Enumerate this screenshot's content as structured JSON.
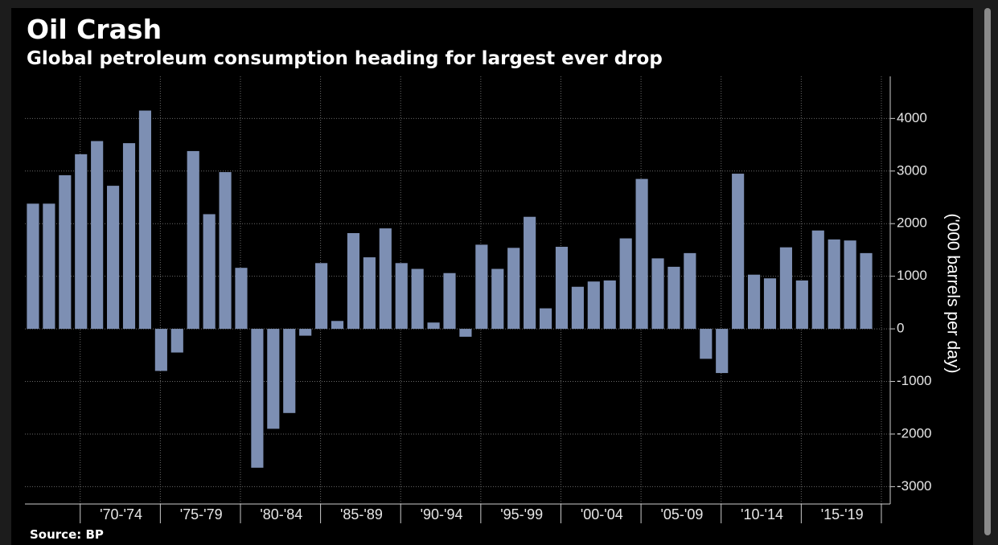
{
  "chart_data": {
    "type": "bar",
    "title": "Oil Crash",
    "subtitle": "Global petroleum consumption heading for largest ever drop",
    "source": "Source: BP",
    "y_label": "('000 barrels per day)",
    "categories": [
      null,
      null,
      null,
      null,
      null,
      null,
      null,
      null,
      null,
      null,
      null,
      null,
      null,
      null,
      null,
      null,
      null,
      null,
      null,
      null,
      null,
      null,
      null,
      null,
      null,
      null,
      null,
      null,
      null,
      null,
      null,
      null,
      null,
      null,
      null,
      null,
      null,
      null,
      null,
      null,
      null,
      null,
      null,
      null,
      null,
      null,
      null,
      null,
      null,
      null,
      null,
      null,
      null
    ],
    "values": [
      2380,
      2380,
      2920,
      3320,
      3570,
      2720,
      3530,
      4150,
      -800,
      -450,
      3380,
      2180,
      2980,
      1160,
      -2640,
      -1900,
      -1600,
      -130,
      1250,
      150,
      1820,
      1360,
      1910,
      1250,
      1140,
      120,
      1060,
      -150,
      1600,
      1140,
      1540,
      2130,
      390,
      1560,
      800,
      900,
      920,
      1720,
      2850,
      1340,
      1180,
      1440,
      -570,
      -840,
      2950,
      1030,
      960,
      1550,
      920,
      1870,
      1700,
      1680,
      1440
    ],
    "x_groups": [
      "'70-'74",
      "'75-'79",
      "'80-'84",
      "'85-'89",
      "'90-'94",
      "'95-'99",
      "'00-'04",
      "'05-'09",
      "'10-'14",
      "'15-'19"
    ],
    "color": "#7d8fb3",
    "ylim": [
      -3330,
      4800
    ],
    "yticks": [
      -3000,
      -2000,
      -1000,
      0,
      1000,
      2000,
      3000,
      4000
    ],
    "grid": true
  }
}
